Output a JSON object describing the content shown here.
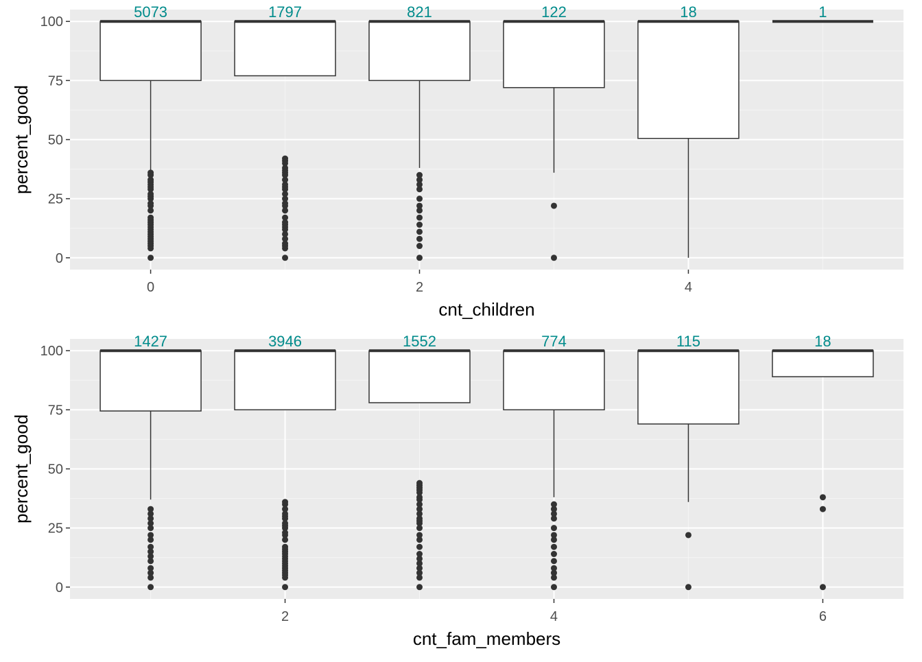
{
  "colors": {
    "panel_background": "#ebebeb",
    "grid_major": "#ffffff",
    "grid_minor": "#f5f5f5",
    "box_fill": "#ffffff",
    "box_line": "#333333",
    "outlier": "#333333",
    "count_label": "#008b8b",
    "tick_label": "#4d4d4d"
  },
  "chart_data": [
    {
      "type": "boxplot",
      "xlabel": "cnt_children",
      "ylabel": "percent_good",
      "xlim": [
        -0.6,
        5.6
      ],
      "ylim": [
        -5,
        105
      ],
      "x_ticks": [
        0,
        2,
        4
      ],
      "y_ticks": [
        0,
        25,
        50,
        75,
        100
      ],
      "boxes": [
        {
          "x": 0,
          "count": "5073",
          "lower_whisker": 37,
          "q1": 75,
          "median": 100,
          "q3": 100,
          "upper_whisker": 100,
          "outliers": [
            0,
            4,
            5,
            6,
            7,
            8,
            9,
            10,
            11,
            12,
            13,
            14,
            15,
            16,
            17,
            20,
            22,
            23,
            25,
            26,
            27,
            29,
            30,
            31,
            32,
            33,
            35,
            36
          ]
        },
        {
          "x": 1,
          "count": "1797",
          "lower_whisker": 77,
          "q1": 77,
          "median": 100,
          "q3": 100,
          "upper_whisker": 100,
          "outliers": [
            0,
            4,
            5,
            6,
            8,
            10,
            12,
            13,
            14,
            15,
            17,
            20,
            22,
            23,
            25,
            27,
            29,
            30,
            31,
            33,
            35,
            36,
            37,
            38,
            40,
            41,
            42
          ]
        },
        {
          "x": 2,
          "count": "821",
          "lower_whisker": 38,
          "q1": 75,
          "median": 100,
          "q3": 100,
          "upper_whisker": 100,
          "outliers": [
            0,
            5,
            8,
            11,
            14,
            17,
            20,
            22,
            25,
            29,
            31,
            33,
            35
          ]
        },
        {
          "x": 3,
          "count": "122",
          "lower_whisker": 36,
          "q1": 72,
          "median": 100,
          "q3": 100,
          "upper_whisker": 100,
          "outliers": [
            0,
            22
          ]
        },
        {
          "x": 4,
          "count": "18",
          "lower_whisker": 0,
          "q1": 50.5,
          "median": 100,
          "q3": 100,
          "upper_whisker": 100,
          "outliers": []
        },
        {
          "x": 5,
          "count": "1",
          "lower_whisker": 100,
          "q1": 100,
          "median": 100,
          "q3": 100,
          "upper_whisker": 100,
          "outliers": []
        }
      ]
    },
    {
      "type": "boxplot",
      "xlabel": "cnt_fam_members",
      "ylabel": "percent_good",
      "xlim": [
        0.4,
        6.6
      ],
      "ylim": [
        -5,
        105
      ],
      "x_ticks": [
        2,
        4,
        6
      ],
      "y_ticks": [
        0,
        25,
        50,
        75,
        100
      ],
      "boxes": [
        {
          "x": 1,
          "count": "1427",
          "lower_whisker": 37,
          "q1": 74.5,
          "median": 100,
          "q3": 100,
          "upper_whisker": 100,
          "outliers": [
            0,
            4,
            6,
            8,
            11,
            13,
            15,
            17,
            20,
            22,
            25,
            27,
            29,
            31,
            33
          ]
        },
        {
          "x": 2,
          "count": "3946",
          "lower_whisker": 75,
          "q1": 75,
          "median": 100,
          "q3": 100,
          "upper_whisker": 100,
          "outliers": [
            0,
            4,
            5,
            6,
            7,
            8,
            9,
            10,
            11,
            12,
            13,
            14,
            15,
            16,
            17,
            20,
            22,
            23,
            25,
            26,
            27,
            29,
            30,
            31,
            33,
            35,
            36
          ]
        },
        {
          "x": 3,
          "count": "1552",
          "lower_whisker": 78,
          "q1": 78,
          "median": 100,
          "q3": 100,
          "upper_whisker": 100,
          "outliers": [
            0,
            4,
            6,
            8,
            10,
            12,
            14,
            17,
            20,
            22,
            25,
            27,
            28,
            29,
            31,
            33,
            35,
            37,
            38,
            40,
            41,
            42,
            43,
            44
          ]
        },
        {
          "x": 4,
          "count": "774",
          "lower_whisker": 38,
          "q1": 75,
          "median": 100,
          "q3": 100,
          "upper_whisker": 100,
          "outliers": [
            0,
            4,
            6,
            8,
            11,
            14,
            17,
            20,
            22,
            25,
            29,
            31,
            33,
            35
          ]
        },
        {
          "x": 5,
          "count": "115",
          "lower_whisker": 36,
          "q1": 69,
          "median": 100,
          "q3": 100,
          "upper_whisker": 100,
          "outliers": [
            0,
            22
          ]
        },
        {
          "x": 6,
          "count": "18",
          "lower_whisker": 89,
          "q1": 89,
          "median": 100,
          "q3": 100,
          "upper_whisker": 100,
          "outliers": [
            0,
            33,
            38
          ]
        }
      ]
    }
  ]
}
